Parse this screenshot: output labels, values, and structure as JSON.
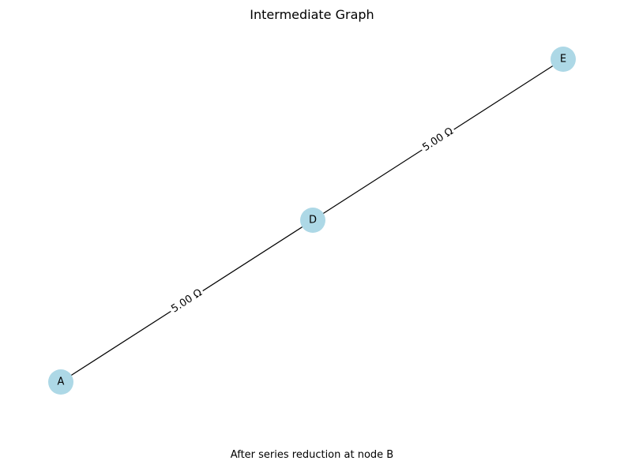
{
  "title": "Intermediate Graph",
  "caption": "After series reduction at node B",
  "colors": {
    "node_fill": "#add8e6",
    "edge_stroke": "#000000",
    "label_background": "#ffffff"
  },
  "nodes": [
    {
      "id": "A",
      "label": "A"
    },
    {
      "id": "D",
      "label": "D"
    },
    {
      "id": "E",
      "label": "E"
    }
  ],
  "edges": [
    {
      "source": "A",
      "target": "D",
      "label": "5.00 Ω"
    },
    {
      "source": "D",
      "target": "E",
      "label": "5.00 Ω"
    }
  ]
}
